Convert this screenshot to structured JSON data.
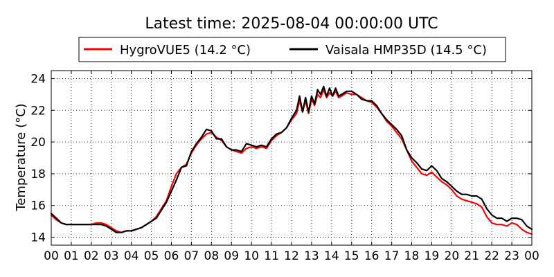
{
  "chart_data": {
    "type": "line",
    "title": "Latest time: 2025-08-04 00:00:00 UTC",
    "xlabel": "",
    "ylabel": "Temperature (°C)",
    "xlim": [
      0,
      24
    ],
    "ylim": [
      13.5,
      24.5
    ],
    "xticks": [
      "00",
      "01",
      "02",
      "03",
      "04",
      "05",
      "06",
      "07",
      "08",
      "09",
      "10",
      "11",
      "12",
      "13",
      "14",
      "15",
      "16",
      "17",
      "18",
      "19",
      "20",
      "21",
      "22",
      "23",
      "00"
    ],
    "yticks": [
      14,
      16,
      18,
      20,
      22,
      24
    ],
    "grid": true,
    "legend_position": "top-center",
    "series": [
      {
        "name": "HygroVUE5 (14.2 °C)",
        "color": "#ff0000",
        "x": [
          0,
          0.25,
          0.5,
          0.75,
          1,
          1.5,
          2,
          2.25,
          2.5,
          2.75,
          3,
          3.25,
          3.5,
          3.75,
          4,
          4.25,
          4.5,
          4.75,
          5,
          5.25,
          5.5,
          5.75,
          6,
          6.25,
          6.5,
          6.75,
          7,
          7.25,
          7.5,
          7.75,
          8,
          8.25,
          8.5,
          8.75,
          9,
          9.25,
          9.5,
          9.75,
          10,
          10.25,
          10.5,
          10.75,
          11,
          11.25,
          11.5,
          11.75,
          12,
          12.25,
          12.4,
          12.55,
          12.7,
          12.85,
          13,
          13.15,
          13.3,
          13.45,
          13.6,
          13.75,
          13.9,
          14.05,
          14.2,
          14.35,
          14.5,
          14.75,
          15,
          15.25,
          15.5,
          15.75,
          16,
          16.25,
          16.5,
          16.75,
          17,
          17.25,
          17.5,
          17.75,
          18,
          18.25,
          18.5,
          18.75,
          19,
          19.25,
          19.5,
          19.75,
          20,
          20.25,
          20.5,
          20.75,
          21,
          21.25,
          21.5,
          21.75,
          22,
          22.25,
          22.5,
          22.75,
          23,
          23.25,
          23.5,
          23.75,
          24
        ],
        "values": [
          15.4,
          15.1,
          14.9,
          14.8,
          14.8,
          14.8,
          14.8,
          14.9,
          14.9,
          14.8,
          14.6,
          14.4,
          14.3,
          14.4,
          14.4,
          14.5,
          14.6,
          14.8,
          15.0,
          15.3,
          15.8,
          16.3,
          17.2,
          18.0,
          18.4,
          18.6,
          19.3,
          19.8,
          20.2,
          20.5,
          20.6,
          20.3,
          20.1,
          19.7,
          19.5,
          19.4,
          19.3,
          19.6,
          19.7,
          19.6,
          19.7,
          19.6,
          20.1,
          20.4,
          20.6,
          20.9,
          21.4,
          21.8,
          22.6,
          21.9,
          22.6,
          21.8,
          22.7,
          22.3,
          23.0,
          22.8,
          23.3,
          22.8,
          23.1,
          22.9,
          23.2,
          22.8,
          22.9,
          23.1,
          23.0,
          23.0,
          22.8,
          22.6,
          22.5,
          22.2,
          21.8,
          21.3,
          21.0,
          20.6,
          20.2,
          19.5,
          18.8,
          18.4,
          18.0,
          17.9,
          18.1,
          17.8,
          17.5,
          17.3,
          17.0,
          16.6,
          16.4,
          16.3,
          16.2,
          16.1,
          15.9,
          15.3,
          14.9,
          14.8,
          14.8,
          14.7,
          14.9,
          14.8,
          14.5,
          14.3,
          14.2
        ]
      },
      {
        "name": "Vaisala HMP35D (14.5 °C)",
        "color": "#000000",
        "x": [
          0,
          0.25,
          0.5,
          0.75,
          1,
          1.5,
          2,
          2.25,
          2.5,
          2.75,
          3,
          3.25,
          3.5,
          3.75,
          4,
          4.25,
          4.5,
          4.75,
          5,
          5.25,
          5.5,
          5.75,
          6,
          6.25,
          6.5,
          6.75,
          7,
          7.25,
          7.5,
          7.75,
          8,
          8.25,
          8.5,
          8.75,
          9,
          9.25,
          9.5,
          9.75,
          10,
          10.25,
          10.5,
          10.75,
          11,
          11.25,
          11.5,
          11.75,
          12,
          12.25,
          12.4,
          12.55,
          12.7,
          12.85,
          13,
          13.15,
          13.3,
          13.45,
          13.6,
          13.75,
          13.9,
          14.05,
          14.2,
          14.35,
          14.5,
          14.75,
          15,
          15.25,
          15.5,
          15.75,
          16,
          16.25,
          16.5,
          16.75,
          17,
          17.25,
          17.5,
          17.75,
          18,
          18.25,
          18.5,
          18.75,
          19,
          19.25,
          19.5,
          19.75,
          20,
          20.25,
          20.5,
          20.75,
          21,
          21.25,
          21.5,
          21.75,
          22,
          22.25,
          22.5,
          22.75,
          23,
          23.25,
          23.5,
          23.75,
          24
        ],
        "values": [
          15.5,
          15.2,
          14.9,
          14.8,
          14.8,
          14.8,
          14.8,
          14.8,
          14.8,
          14.7,
          14.5,
          14.3,
          14.3,
          14.4,
          14.4,
          14.5,
          14.6,
          14.8,
          15.0,
          15.2,
          15.7,
          16.2,
          16.9,
          17.6,
          18.4,
          18.5,
          19.4,
          19.9,
          20.3,
          20.8,
          20.7,
          20.2,
          20.2,
          19.7,
          19.5,
          19.5,
          19.4,
          19.9,
          19.8,
          19.7,
          19.8,
          19.7,
          20.2,
          20.5,
          20.6,
          20.9,
          21.5,
          22.0,
          22.9,
          21.9,
          22.8,
          21.9,
          22.9,
          22.4,
          23.3,
          23.0,
          23.5,
          22.9,
          23.4,
          22.9,
          23.4,
          22.9,
          23.0,
          23.2,
          23.2,
          23.0,
          22.7,
          22.6,
          22.6,
          22.3,
          21.8,
          21.4,
          21.1,
          20.8,
          20.4,
          19.5,
          19.0,
          18.7,
          18.3,
          18.2,
          18.5,
          18.2,
          17.7,
          17.5,
          17.2,
          16.9,
          16.7,
          16.7,
          16.6,
          16.6,
          16.4,
          15.8,
          15.4,
          15.2,
          15.2,
          15.0,
          15.2,
          15.2,
          15.1,
          14.7,
          14.5
        ]
      }
    ]
  }
}
